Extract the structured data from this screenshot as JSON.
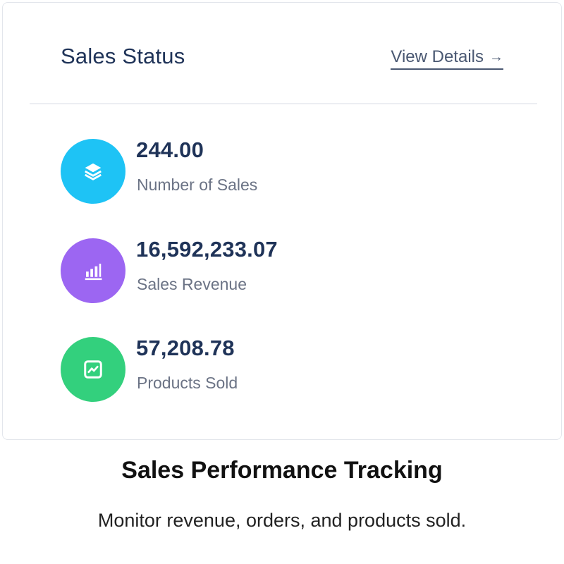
{
  "card": {
    "title": "Sales Status",
    "view_details_label": "View Details",
    "view_details_arrow": "→"
  },
  "stats": [
    {
      "value": "244.00",
      "label": "Number of Sales",
      "color": "#1ec3f5",
      "icon": "layers-icon"
    },
    {
      "value": "16,592,233.07",
      "label": "Sales Revenue",
      "color": "#9c66f2",
      "icon": "bar-chart-icon"
    },
    {
      "value": "57,208.78",
      "label": "Products Sold",
      "color": "#33d07d",
      "icon": "trend-chart-icon"
    }
  ],
  "footer": {
    "title": "Sales Performance Tracking",
    "subtitle": "Monitor revenue, orders, and products sold."
  }
}
